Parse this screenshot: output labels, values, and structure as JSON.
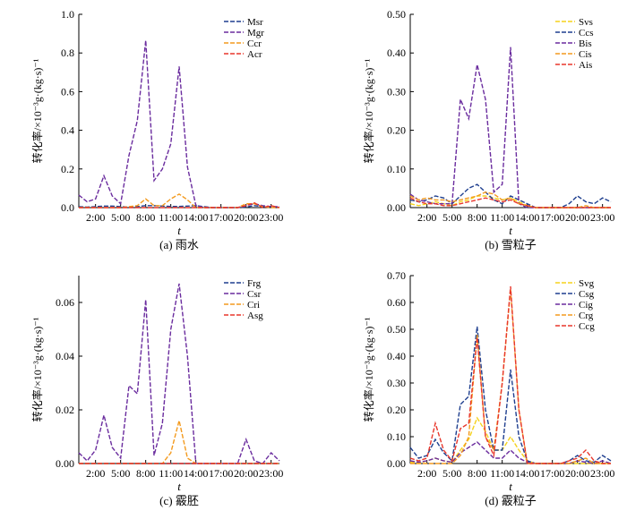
{
  "chart_data": [
    {
      "type": "line",
      "caption": "(a) 雨水",
      "xlabel": "t",
      "ylabel": "转化率/×10⁻³g·(kg·s)⁻¹",
      "ylim": [
        0,
        1.0
      ],
      "yticks": [
        "0.0",
        "0.2",
        "0.4",
        "0.6",
        "0.8",
        "1.0"
      ],
      "x_ticks": [
        "2:00",
        "5:00",
        "8:00",
        "11:00",
        "14:00",
        "17:00",
        "20:00",
        "23:00"
      ],
      "x_hours": [
        0,
        1,
        2,
        3,
        4,
        5,
        6,
        7,
        8,
        9,
        10,
        11,
        12,
        13,
        14,
        15,
        16,
        17,
        18,
        19,
        20,
        21,
        22,
        23,
        24
      ],
      "grid": false,
      "legend_position": "top-right",
      "series": [
        {
          "name": "Msr",
          "color": "#1f3f8f",
          "values": [
            0.005,
            0.003,
            0.005,
            0.008,
            0.008,
            0.005,
            0.003,
            0.005,
            0.01,
            0.01,
            0.008,
            0.006,
            0.006,
            0.008,
            0.01,
            0.005,
            0,
            0,
            0,
            0,
            0.003,
            0.01,
            0.005,
            0.005,
            0.003
          ]
        },
        {
          "name": "Mgr",
          "color": "#6a2c9e",
          "values": [
            0.065,
            0.03,
            0.045,
            0.165,
            0.06,
            0.02,
            0.27,
            0.45,
            0.865,
            0.14,
            0.2,
            0.33,
            0.73,
            0.21,
            0.01,
            0,
            0,
            0,
            0,
            0,
            0.01,
            0.02,
            0.01,
            0.005,
            0.005
          ]
        },
        {
          "name": "Ccr",
          "color": "#f39a1e",
          "values": [
            0,
            0,
            0,
            0,
            0,
            0,
            0.005,
            0.01,
            0.045,
            0.01,
            0.01,
            0.045,
            0.07,
            0.04,
            0,
            0,
            0,
            0,
            0,
            0,
            0.02,
            0.02,
            0.005,
            0,
            0
          ]
        },
        {
          "name": "Acr",
          "color": "#e8372c",
          "values": [
            0,
            0,
            0,
            0,
            0,
            0,
            0,
            0,
            0,
            0,
            0,
            0,
            0,
            0,
            0,
            0,
            0,
            0,
            0,
            0,
            0.01,
            0.025,
            0,
            0.01,
            0
          ]
        }
      ]
    },
    {
      "type": "line",
      "caption": "(b) 雪粒子",
      "xlabel": "t",
      "ylabel": "转化率/×10⁻³g·(kg·s)⁻¹",
      "ylim": [
        0,
        0.5
      ],
      "yticks": [
        "0.00",
        "0.10",
        "0.20",
        "0.30",
        "0.40",
        "0.50"
      ],
      "x_ticks": [
        "2:00",
        "5:00",
        "8:00",
        "11:00",
        "14:00",
        "17:00",
        "20:00",
        "23:00"
      ],
      "x_hours": [
        0,
        1,
        2,
        3,
        4,
        5,
        6,
        7,
        8,
        9,
        10,
        11,
        12,
        13,
        14,
        15,
        16,
        17,
        18,
        19,
        20,
        21,
        22,
        23,
        24
      ],
      "grid": false,
      "legend_position": "top-right",
      "series": [
        {
          "name": "Svs",
          "color": "#f5d21c",
          "values": [
            0.01,
            0.005,
            0.01,
            0.015,
            0.01,
            0.005,
            0.015,
            0.02,
            0.03,
            0.03,
            0.025,
            0.02,
            0.025,
            0.015,
            0.005,
            0,
            0,
            0,
            0,
            0,
            0,
            0,
            0,
            0,
            0
          ]
        },
        {
          "name": "Ccs",
          "color": "#1f3f8f",
          "values": [
            0.02,
            0.015,
            0.02,
            0.03,
            0.025,
            0.01,
            0.03,
            0.05,
            0.06,
            0.04,
            0.02,
            0.01,
            0.03,
            0.02,
            0.01,
            0,
            0,
            0,
            0,
            0.01,
            0.03,
            0.015,
            0.01,
            0.025,
            0.015
          ]
        },
        {
          "name": "Bis",
          "color": "#6a2c9e",
          "values": [
            0.035,
            0.02,
            0.015,
            0.01,
            0.01,
            0.01,
            0.28,
            0.23,
            0.37,
            0.28,
            0.04,
            0.06,
            0.415,
            0.01,
            0,
            0,
            0,
            0,
            0,
            0,
            0,
            0,
            0,
            0,
            0
          ]
        },
        {
          "name": "Cis",
          "color": "#f39a1e",
          "values": [
            0.03,
            0.02,
            0.025,
            0.02,
            0.02,
            0.015,
            0.02,
            0.025,
            0.03,
            0.04,
            0.035,
            0.02,
            0.025,
            0.01,
            0.005,
            0,
            0,
            0,
            0,
            0,
            0,
            0.005,
            0,
            0,
            0
          ]
        },
        {
          "name": "Ais",
          "color": "#e8372c",
          "values": [
            0.025,
            0.015,
            0.01,
            0.01,
            0.005,
            0.005,
            0.01,
            0.015,
            0.02,
            0.025,
            0.02,
            0.015,
            0.02,
            0.01,
            0.005,
            0,
            0,
            0,
            0,
            0,
            0,
            0,
            0,
            0,
            0
          ]
        }
      ]
    },
    {
      "type": "line",
      "caption": "(c) 霰胚",
      "xlabel": "t",
      "ylabel": "转化率/×10⁻³g·(kg·s)⁻¹",
      "ylim": [
        0,
        0.07
      ],
      "yticks": [
        "0.00",
        "0.02",
        "0.04",
        "0.06"
      ],
      "x_ticks": [
        "2:00",
        "5:00",
        "8:00",
        "11:00",
        "14:00",
        "17:00",
        "20:00",
        "23:00"
      ],
      "x_hours": [
        0,
        1,
        2,
        3,
        4,
        5,
        6,
        7,
        8,
        9,
        10,
        11,
        12,
        13,
        14,
        15,
        16,
        17,
        18,
        19,
        20,
        21,
        22,
        23,
        24
      ],
      "grid": false,
      "legend_position": "top-right",
      "series": [
        {
          "name": "Frg",
          "color": "#1f3f8f",
          "values": [
            0,
            0,
            0,
            0,
            0,
            0,
            0,
            0,
            0,
            0,
            0,
            0,
            0,
            0,
            0,
            0,
            0,
            0,
            0,
            0,
            0,
            0,
            0,
            0,
            0
          ]
        },
        {
          "name": "Csr",
          "color": "#6a2c9e",
          "values": [
            0.004,
            0.001,
            0.005,
            0.018,
            0.006,
            0.002,
            0.029,
            0.026,
            0.061,
            0.003,
            0.015,
            0.05,
            0.067,
            0.04,
            0,
            0,
            0,
            0,
            0,
            0,
            0.009,
            0.001,
            0,
            0.004,
            0.001
          ]
        },
        {
          "name": "Cri",
          "color": "#f39a1e",
          "values": [
            0,
            0,
            0,
            0,
            0,
            0,
            0,
            0,
            0,
            0,
            0,
            0.004,
            0.016,
            0.002,
            0,
            0,
            0,
            0,
            0,
            0,
            0,
            0,
            0,
            0,
            0
          ]
        },
        {
          "name": "Asg",
          "color": "#e8372c",
          "values": [
            0,
            0,
            0,
            0,
            0,
            0,
            0,
            0,
            0,
            0,
            0,
            0,
            0,
            0,
            0,
            0,
            0,
            0,
            0,
            0,
            0,
            0,
            0,
            0,
            0
          ]
        }
      ]
    },
    {
      "type": "line",
      "caption": "(d) 霰粒子",
      "xlabel": "t",
      "ylabel": "转化率/×10⁻³g·(kg·s)⁻¹",
      "ylim": [
        0,
        0.7
      ],
      "yticks": [
        "0.00",
        "0.10",
        "0.20",
        "0.30",
        "0.40",
        "0.50",
        "0.60",
        "0.70"
      ],
      "x_ticks": [
        "2:00",
        "5:00",
        "8:00",
        "11:00",
        "14:00",
        "17:00",
        "20:00",
        "23:00"
      ],
      "x_hours": [
        0,
        1,
        2,
        3,
        4,
        5,
        6,
        7,
        8,
        9,
        10,
        11,
        12,
        13,
        14,
        15,
        16,
        17,
        18,
        19,
        20,
        21,
        22,
        23,
        24
      ],
      "grid": false,
      "legend_position": "top-right",
      "series": [
        {
          "name": "Svg",
          "color": "#f5d21c",
          "values": [
            0.005,
            0.002,
            0.01,
            0.02,
            0.01,
            0.005,
            0.05,
            0.09,
            0.17,
            0.12,
            0.05,
            0.05,
            0.1,
            0.05,
            0.01,
            0,
            0,
            0,
            0,
            0,
            0,
            0,
            0,
            0,
            0
          ]
        },
        {
          "name": "Csg",
          "color": "#1f3f8f",
          "values": [
            0.06,
            0.02,
            0.03,
            0.09,
            0.04,
            0.01,
            0.22,
            0.25,
            0.51,
            0.2,
            0.05,
            0.05,
            0.35,
            0.1,
            0.01,
            0,
            0,
            0,
            0,
            0.01,
            0.03,
            0.01,
            0.005,
            0.03,
            0.01
          ]
        },
        {
          "name": "Cig",
          "color": "#6a2c9e",
          "values": [
            0.01,
            0.005,
            0.01,
            0.02,
            0.01,
            0.005,
            0.04,
            0.06,
            0.08,
            0.05,
            0.02,
            0.02,
            0.05,
            0.02,
            0.005,
            0,
            0,
            0,
            0,
            0,
            0.01,
            0.005,
            0,
            0.01,
            0
          ]
        },
        {
          "name": "Crg",
          "color": "#f39a1e",
          "values": [
            0,
            0,
            0,
            0,
            0,
            0,
            0.03,
            0.1,
            0.48,
            0.1,
            0.05,
            0.3,
            0.65,
            0.2,
            0,
            0,
            0,
            0,
            0,
            0,
            0.01,
            0.02,
            0,
            0,
            0
          ]
        },
        {
          "name": "Ccg",
          "color": "#e8372c",
          "values": [
            0.02,
            0.01,
            0.02,
            0.15,
            0.05,
            0.01,
            0.13,
            0.15,
            0.47,
            0.1,
            0.03,
            0.3,
            0.66,
            0.2,
            0,
            0,
            0,
            0,
            0,
            0.01,
            0.02,
            0.05,
            0.01,
            0,
            0
          ]
        }
      ]
    }
  ]
}
